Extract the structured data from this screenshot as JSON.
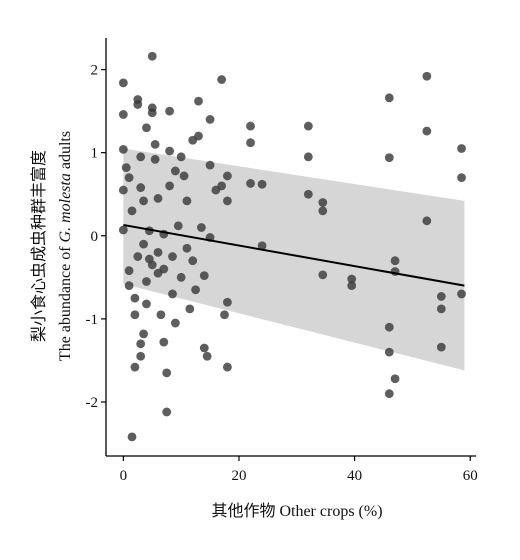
{
  "chart_data": {
    "type": "scatter",
    "xlabel": "其他作物 Other crops (%)",
    "ylabel_line1": "梨小食心虫成虫种群丰富度",
    "ylabel_line2_prefix": "The abundance of ",
    "ylabel_line2_italic": "G. molesta",
    "ylabel_line2_suffix": " adults",
    "xlim": [
      -3,
      61
    ],
    "ylim": [
      -2.65,
      2.38
    ],
    "x_ticks": [
      0,
      20,
      40,
      60
    ],
    "y_ticks": [
      -2,
      -1,
      0,
      1,
      2
    ],
    "grid": false,
    "colors": {
      "points": "#3a3a3a",
      "band": "#d6d6d6",
      "line": "#000000",
      "axis": "#000000"
    },
    "regression": {
      "x": [
        0,
        59
      ],
      "y": [
        0.13,
        -0.6
      ]
    },
    "confidence_band": {
      "x": [
        0,
        59
      ],
      "upper": [
        1.05,
        0.42
      ],
      "lower": [
        -0.58,
        -1.62
      ]
    },
    "points": [
      {
        "x": 0,
        "y": 1.84
      },
      {
        "x": 0,
        "y": 1.46
      },
      {
        "x": 0,
        "y": 1.04
      },
      {
        "x": 0,
        "y": 0.55
      },
      {
        "x": 0,
        "y": 0.07
      },
      {
        "x": 0.5,
        "y": 0.82
      },
      {
        "x": 1,
        "y": 0.7
      },
      {
        "x": 1,
        "y": -0.42
      },
      {
        "x": 1,
        "y": -0.6
      },
      {
        "x": 1.5,
        "y": -2.42
      },
      {
        "x": 1.5,
        "y": 0.3
      },
      {
        "x": 2,
        "y": -0.75
      },
      {
        "x": 2,
        "y": -0.95
      },
      {
        "x": 2,
        "y": -1.58
      },
      {
        "x": 2.5,
        "y": 1.64
      },
      {
        "x": 2.5,
        "y": 1.58
      },
      {
        "x": 2.5,
        "y": -0.25
      },
      {
        "x": 3,
        "y": 0.95
      },
      {
        "x": 3,
        "y": 0.58
      },
      {
        "x": 3,
        "y": -1.3
      },
      {
        "x": 3,
        "y": -1.45
      },
      {
        "x": 3.5,
        "y": 0.42
      },
      {
        "x": 3.5,
        "y": -0.1
      },
      {
        "x": 3.5,
        "y": -1.18
      },
      {
        "x": 4,
        "y": 1.3
      },
      {
        "x": 4,
        "y": -0.55
      },
      {
        "x": 4,
        "y": -0.82
      },
      {
        "x": 4.5,
        "y": 0.06
      },
      {
        "x": 4.5,
        "y": -0.28
      },
      {
        "x": 5,
        "y": 2.16
      },
      {
        "x": 5,
        "y": 1.54
      },
      {
        "x": 5,
        "y": 1.48
      },
      {
        "x": 5,
        "y": -0.35
      },
      {
        "x": 5.5,
        "y": 1.1
      },
      {
        "x": 5.5,
        "y": 0.92
      },
      {
        "x": 6,
        "y": 0.45
      },
      {
        "x": 6,
        "y": -0.2
      },
      {
        "x": 6,
        "y": -0.45
      },
      {
        "x": 6.5,
        "y": -0.95
      },
      {
        "x": 7,
        "y": 0.02
      },
      {
        "x": 7,
        "y": -0.4
      },
      {
        "x": 7,
        "y": -1.28
      },
      {
        "x": 7.5,
        "y": -1.65
      },
      {
        "x": 7.5,
        "y": -2.12
      },
      {
        "x": 8,
        "y": 1.5
      },
      {
        "x": 8,
        "y": 1.02
      },
      {
        "x": 8,
        "y": 0.6
      },
      {
        "x": 8.5,
        "y": -0.25
      },
      {
        "x": 8.5,
        "y": -0.7
      },
      {
        "x": 9,
        "y": 0.78
      },
      {
        "x": 9,
        "y": -1.05
      },
      {
        "x": 9.5,
        "y": 0.12
      },
      {
        "x": 10,
        "y": 0.95
      },
      {
        "x": 10,
        "y": -0.5
      },
      {
        "x": 10.5,
        "y": 0.72
      },
      {
        "x": 11,
        "y": 0.42
      },
      {
        "x": 11,
        "y": -0.15
      },
      {
        "x": 11.5,
        "y": -0.88
      },
      {
        "x": 12,
        "y": 1.15
      },
      {
        "x": 12,
        "y": -0.3
      },
      {
        "x": 12.5,
        "y": -0.65
      },
      {
        "x": 13,
        "y": 1.62
      },
      {
        "x": 13,
        "y": 1.2
      },
      {
        "x": 13.5,
        "y": 0.1
      },
      {
        "x": 14,
        "y": -0.48
      },
      {
        "x": 14,
        "y": -1.35
      },
      {
        "x": 14.5,
        "y": -1.45
      },
      {
        "x": 15,
        "y": 1.4
      },
      {
        "x": 15,
        "y": 0.85
      },
      {
        "x": 15,
        "y": -0.02
      },
      {
        "x": 16,
        "y": 0.55
      },
      {
        "x": 17,
        "y": 1.88
      },
      {
        "x": 17,
        "y": 0.6
      },
      {
        "x": 17.5,
        "y": -0.95
      },
      {
        "x": 18,
        "y": 0.72
      },
      {
        "x": 18,
        "y": 0.42
      },
      {
        "x": 18,
        "y": -0.8
      },
      {
        "x": 18,
        "y": -1.58
      },
      {
        "x": 22,
        "y": 1.32
      },
      {
        "x": 22,
        "y": 1.12
      },
      {
        "x": 22,
        "y": 0.63
      },
      {
        "x": 24,
        "y": 0.62
      },
      {
        "x": 24,
        "y": -0.12
      },
      {
        "x": 32,
        "y": 1.32
      },
      {
        "x": 32,
        "y": 0.95
      },
      {
        "x": 32,
        "y": 0.5
      },
      {
        "x": 34.5,
        "y": 0.4
      },
      {
        "x": 34.5,
        "y": 0.3
      },
      {
        "x": 34.5,
        "y": -0.47
      },
      {
        "x": 39.5,
        "y": -0.52
      },
      {
        "x": 39.5,
        "y": -0.6
      },
      {
        "x": 46,
        "y": 1.66
      },
      {
        "x": 46,
        "y": 0.94
      },
      {
        "x": 46,
        "y": -1.1
      },
      {
        "x": 46,
        "y": -1.4
      },
      {
        "x": 46,
        "y": -1.9
      },
      {
        "x": 47,
        "y": -0.3
      },
      {
        "x": 47,
        "y": -0.43
      },
      {
        "x": 47,
        "y": -1.72
      },
      {
        "x": 52.5,
        "y": 1.92
      },
      {
        "x": 52.5,
        "y": 1.26
      },
      {
        "x": 52.5,
        "y": 0.18
      },
      {
        "x": 55,
        "y": -0.73
      },
      {
        "x": 55,
        "y": -0.88
      },
      {
        "x": 55,
        "y": -1.34
      },
      {
        "x": 58.5,
        "y": 1.05
      },
      {
        "x": 58.5,
        "y": 0.7
      },
      {
        "x": 58.5,
        "y": -0.7
      }
    ]
  }
}
